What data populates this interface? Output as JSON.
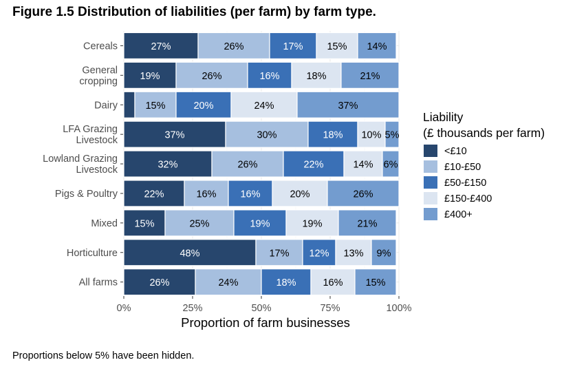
{
  "figure": {
    "title": "Figure 1.5 Distribution of liabilities (per farm) by farm type.",
    "footnote": "Proportions below 5% have been hidden."
  },
  "chart_data": {
    "type": "bar",
    "orientation": "horizontal",
    "stacked": true,
    "categories": [
      [
        "Cereals"
      ],
      [
        "General",
        "cropping"
      ],
      [
        "Dairy"
      ],
      [
        "LFA Grazing",
        "Livestock"
      ],
      [
        "Lowland Grazing",
        "Livestock"
      ],
      [
        "Pigs & Poultry"
      ],
      [
        "Mixed"
      ],
      [
        "Horticulture"
      ],
      [
        "All farms"
      ]
    ],
    "series": [
      {
        "name": "<£10",
        "color": "#27466d",
        "label_color": "#ffffff",
        "values": [
          27,
          19,
          4,
          37,
          32,
          22,
          15,
          48,
          26
        ]
      },
      {
        "name": "£10-£50",
        "color": "#a6bfdf",
        "label_color": "#000000",
        "values": [
          26,
          26,
          15,
          30,
          26,
          16,
          25,
          17,
          24
        ]
      },
      {
        "name": "£50-£150",
        "color": "#3a70b6",
        "label_color": "#ffffff",
        "values": [
          17,
          16,
          20,
          18,
          22,
          16,
          19,
          12,
          18
        ]
      },
      {
        "name": "£150-£400",
        "color": "#dce5f1",
        "label_color": "#000000",
        "values": [
          15,
          18,
          24,
          10,
          14,
          20,
          19,
          13,
          16
        ]
      },
      {
        "name": "£400+",
        "color": "#739ccf",
        "label_color": "#000000",
        "values": [
          14,
          21,
          37,
          5,
          6,
          26,
          21,
          9,
          15
        ]
      }
    ],
    "label_min_percent": 5,
    "xlabel": "Proportion of farm businesses",
    "xlim": [
      0,
      100
    ],
    "xticks": [
      0,
      25,
      50,
      75,
      100
    ],
    "xtick_labels": [
      "0%",
      "25%",
      "50%",
      "75%",
      "100%"
    ],
    "legend": {
      "title": [
        "Liability",
        "(£ thousands per farm)"
      ],
      "position": "right"
    },
    "grid": true
  }
}
